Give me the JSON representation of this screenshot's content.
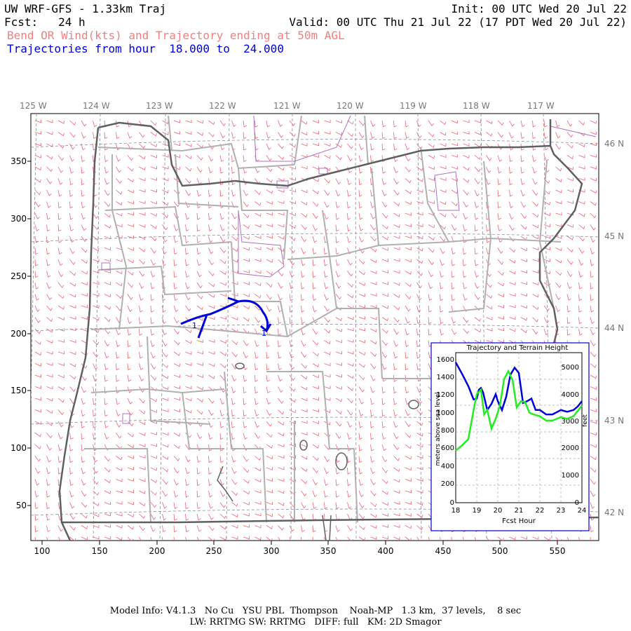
{
  "header": {
    "title": "UW WRF-GFS - 1.33km Traj",
    "init": "Init: 00 UTC Wed 20 Jul 22",
    "fcst": "Fcst:   24 h",
    "valid": "Valid: 00 UTC Thu 21 Jul 22 (17 PDT Wed 20 Jul 22)",
    "product": "Bend OR Wind(kts) and Trajectory ending at 50m AGL",
    "traj_range": "Trajectories from hour  18.000 to  24.000"
  },
  "map": {
    "lon_labels": [
      "125 W",
      "124 W",
      "123 W",
      "122 W",
      "121 W",
      "120 W",
      "119 W",
      "118 W",
      "117 W"
    ],
    "lat_labels": [
      "46 N",
      "45 N",
      "44 N",
      "43 N",
      "42 N"
    ],
    "x_ticks": [
      "100",
      "150",
      "200",
      "250",
      "300",
      "350",
      "400",
      "450",
      "500",
      "550"
    ],
    "y_ticks": [
      "350",
      "300",
      "250",
      "200",
      "150",
      "100",
      "50"
    ],
    "traj_markers": [
      "1",
      "1"
    ],
    "colors": {
      "wind_barb": "#f06070",
      "trajectory": "#0000dd",
      "borders": "#9a9a9a",
      "coast": "#555555"
    }
  },
  "inset": {
    "title": "Trajectory and Terrain Height",
    "xlabel": "Fcst Hour",
    "ylabel_left": "meters above sea level",
    "ylabel_right": "feet",
    "x_ticks": [
      "18",
      "19",
      "20",
      "21",
      "22",
      "23",
      "24"
    ],
    "y_ticks_m": [
      "1600",
      "1400",
      "1200",
      "1000",
      "800",
      "600",
      "400",
      "200",
      "0"
    ],
    "y_ticks_ft": [
      "5000",
      "4000",
      "3000",
      "2000",
      "1000",
      "0"
    ]
  },
  "chart_data": {
    "type": "line",
    "title": "Trajectory and Terrain Height",
    "xlabel": "Fcst Hour",
    "ylabel": "meters above sea level",
    "xlim": [
      18,
      24
    ],
    "ylim": [
      0,
      1700
    ],
    "series": [
      {
        "color": "#0000dd",
        "x": [
          18.0,
          18.3,
          18.6,
          18.85,
          19.0,
          19.1,
          19.2,
          19.3,
          19.5,
          19.7,
          19.9,
          20.0,
          20.2,
          20.4,
          20.6,
          20.8,
          21.0,
          21.2,
          21.4,
          21.6,
          21.8,
          22.0,
          22.3,
          22.6,
          23.0,
          23.3,
          23.6,
          23.8,
          24.0
        ],
        "y": [
          1590,
          1460,
          1320,
          1170,
          1180,
          1280,
          1300,
          1250,
          1050,
          1120,
          1230,
          1150,
          1050,
          1200,
          1450,
          1530,
          1470,
          1130,
          1150,
          1180,
          1050,
          1050,
          1000,
          1000,
          1050,
          1030,
          1050,
          1090,
          1150
        ]
      },
      {
        "color": "#22ee22",
        "x": [
          18.0,
          18.3,
          18.6,
          18.85,
          19.0,
          19.2,
          19.35,
          19.5,
          19.7,
          19.9,
          20.1,
          20.3,
          20.5,
          20.7,
          20.9,
          21.1,
          21.3,
          21.5,
          21.7,
          22.0,
          22.3,
          22.6,
          23.0,
          23.3,
          23.6,
          24.0
        ],
        "y": [
          590,
          650,
          720,
          1050,
          1230,
          1280,
          1000,
          1050,
          840,
          950,
          1100,
          1400,
          1490,
          1390,
          1080,
          1150,
          1140,
          1020,
          1000,
          980,
          930,
          930,
          970,
          950,
          980,
          1100
        ]
      }
    ]
  },
  "footer": {
    "line1": "Model Info: V4.1.3   No Cu   YSU PBL  Thompson    Noah-MP   1.3 km,  37 levels,    8 sec",
    "line2": "LW: RRTMG SW: RRTMG   DIFF: full   KM: 2D Smagor"
  }
}
